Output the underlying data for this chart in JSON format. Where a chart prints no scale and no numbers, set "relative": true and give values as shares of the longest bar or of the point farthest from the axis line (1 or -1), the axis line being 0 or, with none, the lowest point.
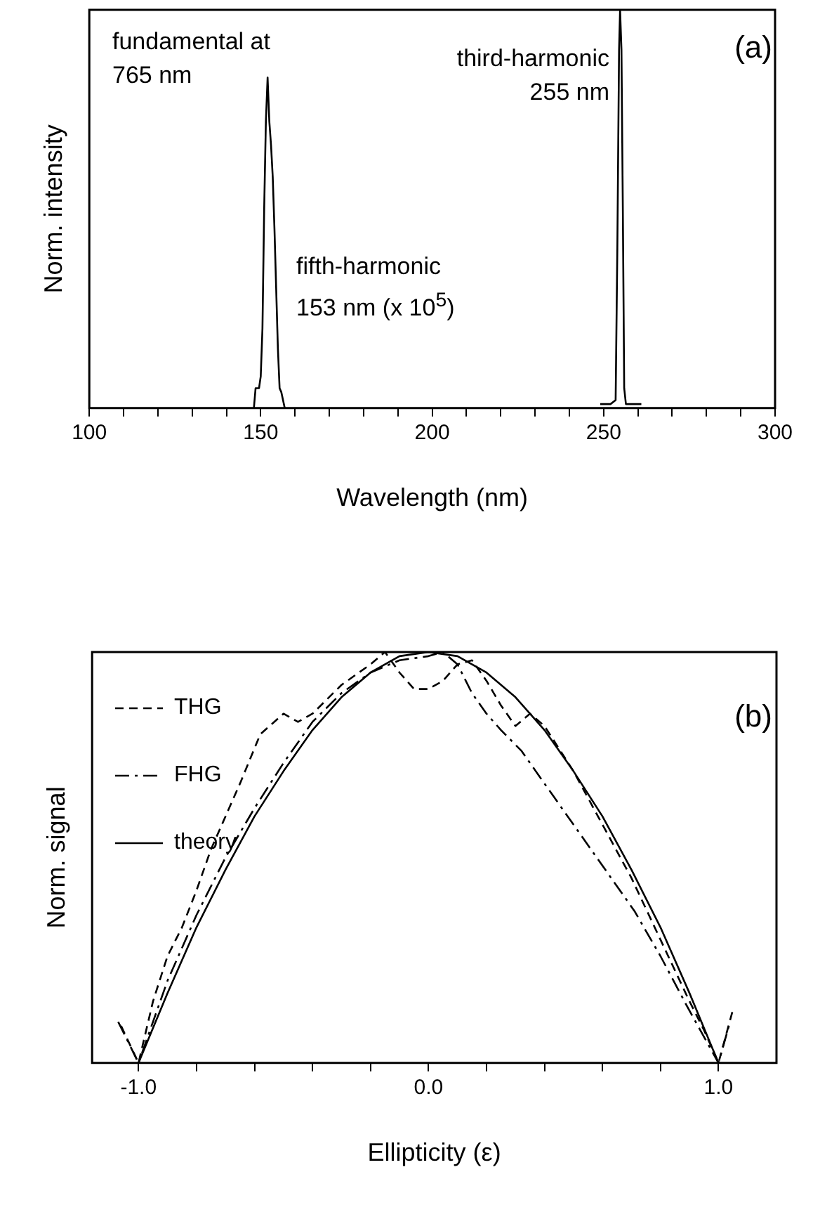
{
  "chart_data": [
    {
      "type": "line",
      "xlabel": "Wavelength (nm)",
      "ylabel": "Norm. intensity",
      "relative": true,
      "legend": false,
      "grid": false,
      "tick_labels": "x",
      "line_style": "solid",
      "marker": "none",
      "xlim": [
        100,
        300
      ],
      "xticks": [
        100,
        {
          "value": 110,
          "label": null
        },
        {
          "value": 120,
          "label": null
        },
        {
          "value": 130,
          "label": null
        },
        {
          "value": 140,
          "label": null
        },
        150,
        {
          "value": 160,
          "label": null
        },
        {
          "value": 170,
          "label": null
        },
        {
          "value": 180,
          "label": null
        },
        {
          "value": 190,
          "label": null
        },
        200,
        {
          "value": 210,
          "label": null
        },
        {
          "value": 220,
          "label": null
        },
        {
          "value": 230,
          "label": null
        },
        {
          "value": 240,
          "label": null
        },
        250,
        {
          "value": 260,
          "label": null
        },
        {
          "value": 270,
          "label": null
        },
        {
          "value": 280,
          "label": null
        },
        {
          "value": 290,
          "label": null
        },
        300
      ],
      "annotations": [
        "fundamental at 765 nm",
        "fifth-harmonic 153 nm (x 10$^{5}$)",
        "third-harmonic 255 nm",
        "(a)"
      ],
      "series": [
        {
          "color": "#000000",
          "x": [
            148,
            148.5,
            149.5,
            150,
            150.5,
            151,
            151.5,
            152,
            152.5,
            153,
            153.5,
            154,
            154.5,
            155,
            155.5,
            156,
            157
          ],
          "values": [
            0,
            0.05,
            0.05,
            0.08,
            0.2,
            0.5,
            0.72,
            0.83,
            0.72,
            0.66,
            0.58,
            0.45,
            0.3,
            0.15,
            0.05,
            0.04,
            0
          ]
        },
        {
          "color": "#000000",
          "x": [
            249,
            252,
            253.5,
            254,
            254.5,
            254.8,
            255.2,
            255.6,
            256,
            256.5,
            258,
            261
          ],
          "values": [
            0.01,
            0.01,
            0.02,
            0.4,
            0.9,
            1.0,
            0.9,
            0.5,
            0.05,
            0.01,
            0.01,
            0.01
          ]
        }
      ]
    },
    {
      "type": "line",
      "xlabel": "Ellipticity (ε)",
      "ylabel": "Norm. signal",
      "relative": true,
      "legend": "top left",
      "grid": false,
      "tick_labels": "x",
      "marker": "none",
      "xlim": [
        -1.16,
        1.2
      ],
      "xticks": [
        {
          "value": -1,
          "label": "-1.0"
        },
        {
          "value": -0.8,
          "label": null
        },
        {
          "value": -0.6,
          "label": null
        },
        {
          "value": -0.4,
          "label": null
        },
        {
          "value": -0.2,
          "label": null
        },
        {
          "value": 0,
          "label": "0.0"
        },
        {
          "value": 0.2,
          "label": null
        },
        {
          "value": 0.4,
          "label": null
        },
        {
          "value": 0.6,
          "label": null
        },
        {
          "value": 0.8,
          "label": null
        },
        {
          "value": 1,
          "label": "1.0"
        }
      ],
      "annotations": [
        "(b)"
      ],
      "series": [
        {
          "name": "THG",
          "color": "#000000",
          "line_style": "dashed",
          "x": [
            -1.06,
            -1.0,
            -0.95,
            -0.9,
            -0.85,
            -0.8,
            -0.75,
            -0.7,
            -0.65,
            -0.58,
            -0.5,
            -0.45,
            -0.4,
            -0.3,
            -0.2,
            -0.15,
            -0.1,
            -0.05,
            0.0,
            0.05,
            0.1,
            0.15,
            0.2,
            0.25,
            0.3,
            0.35,
            0.4,
            0.5,
            0.6,
            0.7,
            0.8,
            0.9,
            0.95,
            1.0,
            1.05
          ],
          "values": [
            0.09,
            0,
            0.15,
            0.26,
            0.33,
            0.42,
            0.52,
            0.6,
            0.68,
            0.8,
            0.85,
            0.83,
            0.85,
            0.92,
            0.97,
            1.0,
            0.95,
            0.91,
            0.91,
            0.93,
            0.97,
            0.98,
            0.93,
            0.87,
            0.82,
            0.85,
            0.82,
            0.71,
            0.58,
            0.45,
            0.3,
            0.15,
            0.08,
            0,
            0.13
          ]
        },
        {
          "name": "FHG",
          "color": "#000000",
          "line_style": "dashdot",
          "x": [
            -1.07,
            -1.0,
            -0.9,
            -0.8,
            -0.7,
            -0.6,
            -0.5,
            -0.4,
            -0.3,
            -0.2,
            -0.1,
            0.0,
            0.05,
            0.1,
            0.15,
            0.2,
            0.25,
            0.32,
            0.42,
            0.5,
            0.59,
            0.71,
            0.8,
            0.89,
            1.0,
            1.04
          ],
          "values": [
            0.1,
            0,
            0.2,
            0.36,
            0.5,
            0.62,
            0.73,
            0.83,
            0.9,
            0.95,
            0.98,
            0.99,
            1.0,
            0.97,
            0.9,
            0.85,
            0.81,
            0.76,
            0.66,
            0.58,
            0.49,
            0.37,
            0.26,
            0.14,
            0,
            0.1
          ]
        },
        {
          "name": "theory",
          "color": "#000000",
          "line_style": "solid",
          "x": [
            -1.0,
            -0.9,
            -0.8,
            -0.7,
            -0.6,
            -0.5,
            -0.4,
            -0.3,
            -0.2,
            -0.1,
            0.0,
            0.1,
            0.2,
            0.3,
            0.4,
            0.5,
            0.6,
            0.7,
            0.8,
            0.9,
            1.0
          ],
          "values": [
            0,
            0.17,
            0.33,
            0.47,
            0.6,
            0.71,
            0.81,
            0.89,
            0.95,
            0.99,
            1.0,
            0.99,
            0.95,
            0.89,
            0.81,
            0.71,
            0.6,
            0.47,
            0.33,
            0.17,
            0
          ]
        }
      ]
    }
  ]
}
